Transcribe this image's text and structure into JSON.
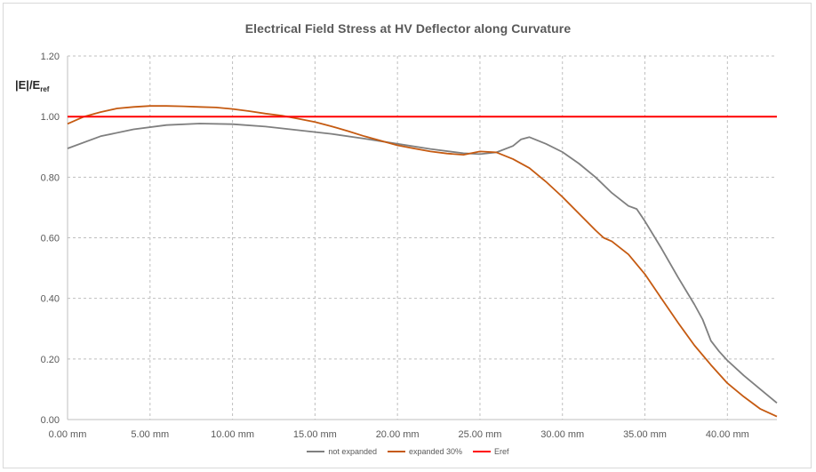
{
  "chart_data": {
    "type": "line",
    "title": "Electrical Field Stress at HV Deflector along Curvature",
    "ylabel_main": "|E|/E",
    "ylabel_sub": "ref",
    "xlim": [
      0,
      43
    ],
    "ylim": [
      0,
      1.2
    ],
    "grid": true,
    "legend_position": "bottom",
    "x_ticks": [
      0,
      5,
      10,
      15,
      20,
      25,
      30,
      35,
      40
    ],
    "x_tick_labels": [
      "0.00 mm",
      "5.00 mm",
      "10.00 mm",
      "15.00 mm",
      "20.00 mm",
      "25.00 mm",
      "30.00 mm",
      "35.00 mm",
      "40.00 mm"
    ],
    "y_ticks": [
      0,
      0.2,
      0.4,
      0.6,
      0.8,
      1.0,
      1.2
    ],
    "y_tick_labels": [
      "0.00",
      "0.20",
      "0.40",
      "0.60",
      "0.80",
      "1.00",
      "1.20"
    ],
    "series": [
      {
        "name": "not expanded",
        "color": "#7f7f7f",
        "points": [
          [
            0,
            0.895
          ],
          [
            2,
            0.935
          ],
          [
            4,
            0.958
          ],
          [
            6,
            0.972
          ],
          [
            8,
            0.977
          ],
          [
            10,
            0.975
          ],
          [
            12,
            0.967
          ],
          [
            14,
            0.955
          ],
          [
            16,
            0.943
          ],
          [
            18,
            0.927
          ],
          [
            20,
            0.91
          ],
          [
            22,
            0.893
          ],
          [
            24,
            0.879
          ],
          [
            25,
            0.876
          ],
          [
            26,
            0.882
          ],
          [
            27,
            0.903
          ],
          [
            27.5,
            0.925
          ],
          [
            28,
            0.932
          ],
          [
            29,
            0.91
          ],
          [
            30,
            0.883
          ],
          [
            31,
            0.845
          ],
          [
            32,
            0.8
          ],
          [
            33,
            0.748
          ],
          [
            34,
            0.705
          ],
          [
            34.5,
            0.695
          ],
          [
            35,
            0.655
          ],
          [
            36,
            0.565
          ],
          [
            37,
            0.47
          ],
          [
            38,
            0.38
          ],
          [
            38.5,
            0.33
          ],
          [
            39,
            0.26
          ],
          [
            39.5,
            0.225
          ],
          [
            40,
            0.195
          ],
          [
            41,
            0.145
          ],
          [
            42,
            0.1
          ],
          [
            43,
            0.055
          ]
        ]
      },
      {
        "name": "expanded 30%",
        "color": "#c55a11",
        "points": [
          [
            0,
            0.976
          ],
          [
            1,
            1.0
          ],
          [
            2,
            1.015
          ],
          [
            3,
            1.027
          ],
          [
            4,
            1.032
          ],
          [
            5,
            1.035
          ],
          [
            6,
            1.035
          ],
          [
            7,
            1.034
          ],
          [
            8,
            1.032
          ],
          [
            9,
            1.03
          ],
          [
            10,
            1.025
          ],
          [
            11,
            1.018
          ],
          [
            12,
            1.01
          ],
          [
            13,
            1.003
          ],
          [
            14,
            0.993
          ],
          [
            15,
            0.982
          ],
          [
            16,
            0.968
          ],
          [
            17,
            0.952
          ],
          [
            18,
            0.935
          ],
          [
            19,
            0.92
          ],
          [
            20,
            0.905
          ],
          [
            21,
            0.895
          ],
          [
            22,
            0.885
          ],
          [
            23,
            0.878
          ],
          [
            24,
            0.874
          ],
          [
            25,
            0.885
          ],
          [
            26,
            0.882
          ],
          [
            27,
            0.86
          ],
          [
            28,
            0.83
          ],
          [
            29,
            0.785
          ],
          [
            30,
            0.735
          ],
          [
            31,
            0.68
          ],
          [
            32,
            0.625
          ],
          [
            32.5,
            0.6
          ],
          [
            33,
            0.588
          ],
          [
            34,
            0.545
          ],
          [
            35,
            0.48
          ],
          [
            36,
            0.4
          ],
          [
            37,
            0.32
          ],
          [
            38,
            0.245
          ],
          [
            39,
            0.18
          ],
          [
            40,
            0.12
          ],
          [
            41,
            0.075
          ],
          [
            42,
            0.035
          ],
          [
            43,
            0.01
          ]
        ]
      },
      {
        "name": "Eref",
        "color": "#ff0000",
        "points": [
          [
            0,
            1.0
          ],
          [
            43,
            1.0
          ]
        ]
      }
    ]
  }
}
